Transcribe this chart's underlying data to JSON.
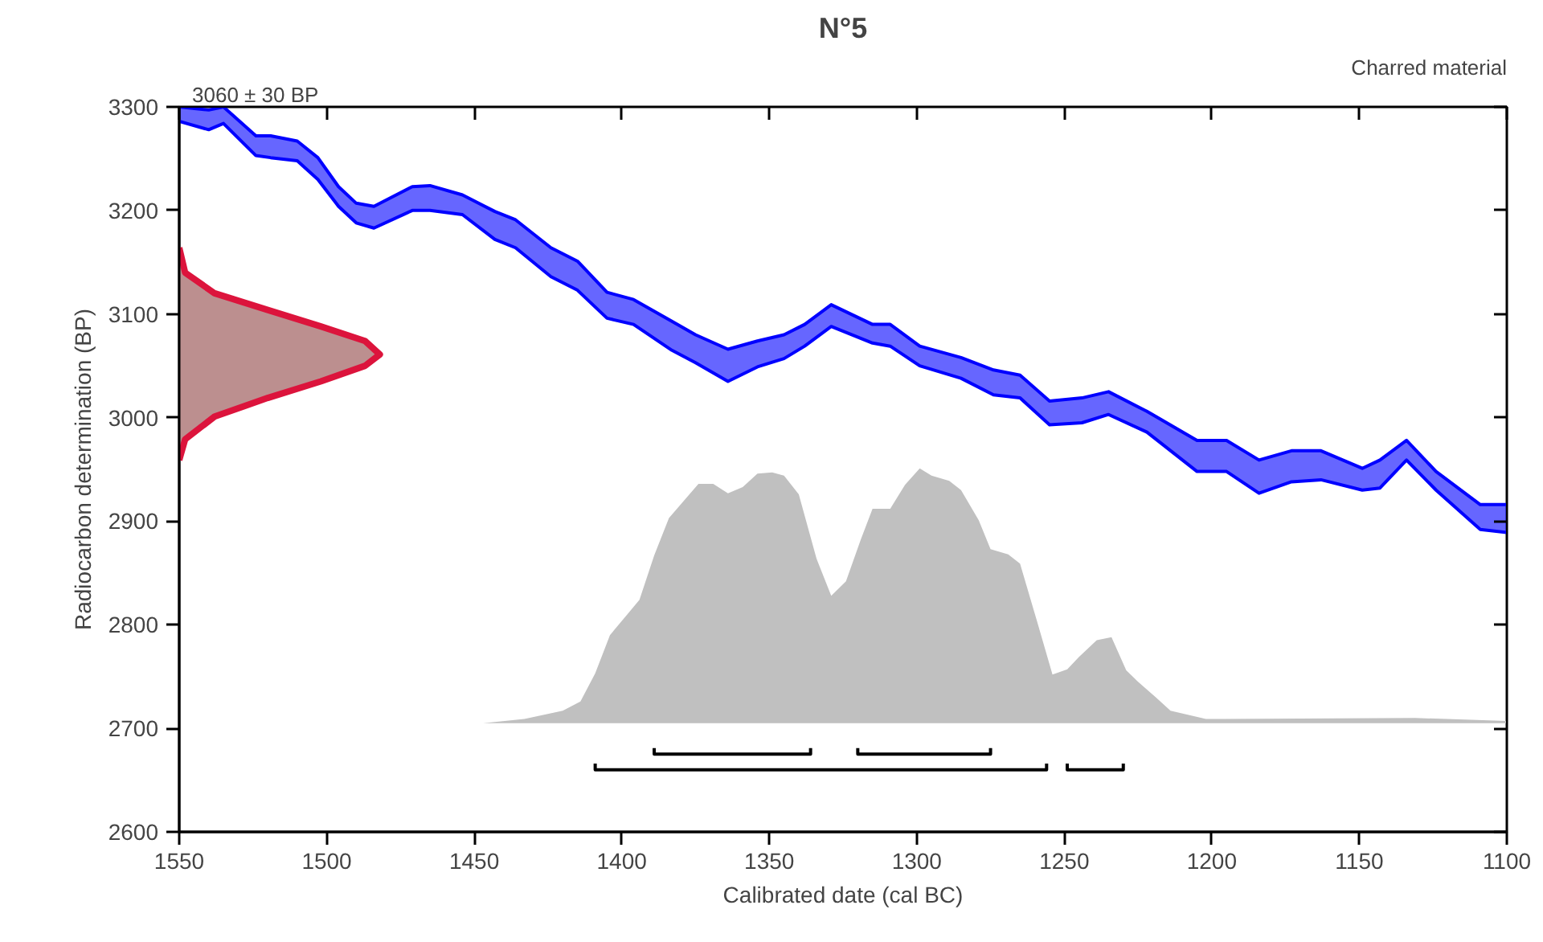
{
  "chart_data": {
    "type": "line",
    "title": "N°5",
    "xlabel": "Calibrated date (cal BC)",
    "ylabel": "Radiocarbon determination (BP)",
    "annotations": [
      "3060 ± 30 BP",
      "Charred material"
    ],
    "xlim": [
      1550,
      1100
    ],
    "xticks": [
      1550,
      1500,
      1450,
      1400,
      1350,
      1300,
      1250,
      1200,
      1150,
      1100
    ],
    "ylim": [
      2600,
      3300
    ],
    "yticks": [
      2600,
      2700,
      2800,
      2900,
      3000,
      3100,
      3200,
      3300
    ],
    "grid": false,
    "series": [
      {
        "type": "line",
        "color": "#0000ff",
        "x": [
          1550,
          1540,
          1535,
          1524,
          1519,
          1510,
          1503,
          1496,
          1490,
          1484,
          1471,
          1465,
          1454,
          1443,
          1436,
          1424,
          1415,
          1405,
          1396,
          1383,
          1375,
          1364,
          1354,
          1345,
          1338,
          1329,
          1315,
          1309,
          1299,
          1285,
          1274,
          1265,
          1255,
          1244,
          1235,
          1222,
          1205,
          1195,
          1184,
          1173,
          1163,
          1149,
          1143,
          1134,
          1124,
          1109,
          1100
        ],
        "values": [
          3300,
          3297,
          3300,
          3272,
          3272,
          3267,
          3251,
          3223,
          3207,
          3204,
          3223,
          3224,
          3215,
          3199,
          3191,
          3164,
          3151,
          3121,
          3114,
          3093,
          3080,
          3066,
          3074,
          3080,
          3090,
          3109,
          3090,
          3090,
          3069,
          3058,
          3046,
          3041,
          3016,
          3019,
          3025,
          3006,
          2978,
          2978,
          2959,
          2968,
          2968,
          2951,
          2959,
          2978,
          2948,
          2916,
          2916
        ]
      },
      {
        "type": "line",
        "color": "#0000ff",
        "x": [
          1550,
          1540,
          1535,
          1524,
          1519,
          1510,
          1503,
          1496,
          1490,
          1484,
          1471,
          1465,
          1454,
          1443,
          1436,
          1424,
          1415,
          1405,
          1396,
          1383,
          1375,
          1364,
          1354,
          1345,
          1338,
          1329,
          1315,
          1309,
          1299,
          1285,
          1274,
          1265,
          1255,
          1244,
          1235,
          1222,
          1205,
          1195,
          1184,
          1173,
          1163,
          1149,
          1143,
          1134,
          1124,
          1109,
          1100
        ],
        "values": [
          3286,
          3278,
          3284,
          3253,
          3251,
          3248,
          3230,
          3204,
          3188,
          3183,
          3200,
          3200,
          3196,
          3172,
          3164,
          3136,
          3123,
          3096,
          3090,
          3065,
          3053,
          3035,
          3049,
          3057,
          3069,
          3088,
          3072,
          3069,
          3050,
          3038,
          3022,
          3019,
          2993,
          2995,
          3003,
          2986,
          2948,
          2948,
          2927,
          2938,
          2940,
          2930,
          2932,
          2959,
          2930,
          2892,
          2889
        ],
        "upper": [
          3300,
          3297,
          3300,
          3272,
          3272,
          3267,
          3251,
          3223,
          3207,
          3204,
          3223,
          3224,
          3215,
          3199,
          3191,
          3164,
          3151,
          3121,
          3114,
          3093,
          3080,
          3066,
          3074,
          3080,
          3090,
          3109,
          3090,
          3090,
          3069,
          3058,
          3046,
          3041,
          3016,
          3019,
          3025,
          3006,
          2978,
          2978,
          2959,
          2968,
          2968,
          2951,
          2959,
          2978,
          2948,
          2916,
          2916
        ],
        "lower": [
          3286,
          3278,
          3284,
          3253,
          3251,
          3248,
          3230,
          3204,
          3188,
          3183,
          3200,
          3200,
          3196,
          3172,
          3164,
          3136,
          3123,
          3096,
          3090,
          3065,
          3053,
          3035,
          3049,
          3057,
          3069,
          3088,
          3072,
          3069,
          3050,
          3038,
          3022,
          3019,
          2993,
          2995,
          3003,
          2986,
          2948,
          2948,
          2927,
          2938,
          2940,
          2930,
          2932,
          2959,
          2930,
          2892,
          2889
        ]
      },
      {
        "type": "area",
        "color": "#dc143c",
        "x": [
          1550,
          1548,
          1538,
          1520,
          1502,
          1487,
          1482,
          1487,
          1502,
          1520,
          1538,
          1548,
          1550
        ],
        "values": [
          3164,
          3140,
          3120,
          3104,
          3088,
          3074,
          3061,
          3050,
          3035,
          3019,
          3001,
          2979,
          2959
        ]
      },
      {
        "type": "area",
        "color": "#c0c0c0",
        "x": [
          1447,
          1433,
          1420,
          1414,
          1409,
          1404,
          1394,
          1389,
          1384,
          1374,
          1369,
          1364,
          1359,
          1354,
          1349,
          1345,
          1340,
          1334,
          1329,
          1324,
          1319,
          1315,
          1309,
          1304,
          1299,
          1295,
          1289,
          1285,
          1279,
          1275,
          1269,
          1265,
          1259,
          1254,
          1249,
          1245,
          1239,
          1234,
          1229,
          1225,
          1219,
          1214,
          1202,
          1131,
          1100
        ],
        "values": [
          2705,
          2709,
          2717,
          2726,
          2753,
          2790,
          2824,
          2867,
          2903,
          2936,
          2936,
          2927,
          2933,
          2946,
          2947,
          2944,
          2926,
          2864,
          2828,
          2842,
          2882,
          2912,
          2912,
          2935,
          2951,
          2944,
          2939,
          2930,
          2901,
          2873,
          2868,
          2859,
          2801,
          2752,
          2757,
          2769,
          2785,
          2788,
          2756,
          2745,
          2730,
          2717,
          2709,
          2710,
          2707
        ]
      },
      {
        "type": "line",
        "color": "#000000",
        "x": [
          1389,
          1389,
          1336,
          1336,
          null,
          1320,
          1320,
          1275,
          1275,
          null,
          1409,
          1409,
          1256,
          1256,
          null,
          1249,
          1249,
          1230,
          1230
        ],
        "values": [
          2681,
          2675,
          2675,
          2681,
          null,
          2681,
          2675,
          2675,
          2681,
          null,
          2666,
          2660,
          2660,
          2666,
          null,
          2666,
          2660,
          2660,
          2666
        ]
      }
    ]
  }
}
